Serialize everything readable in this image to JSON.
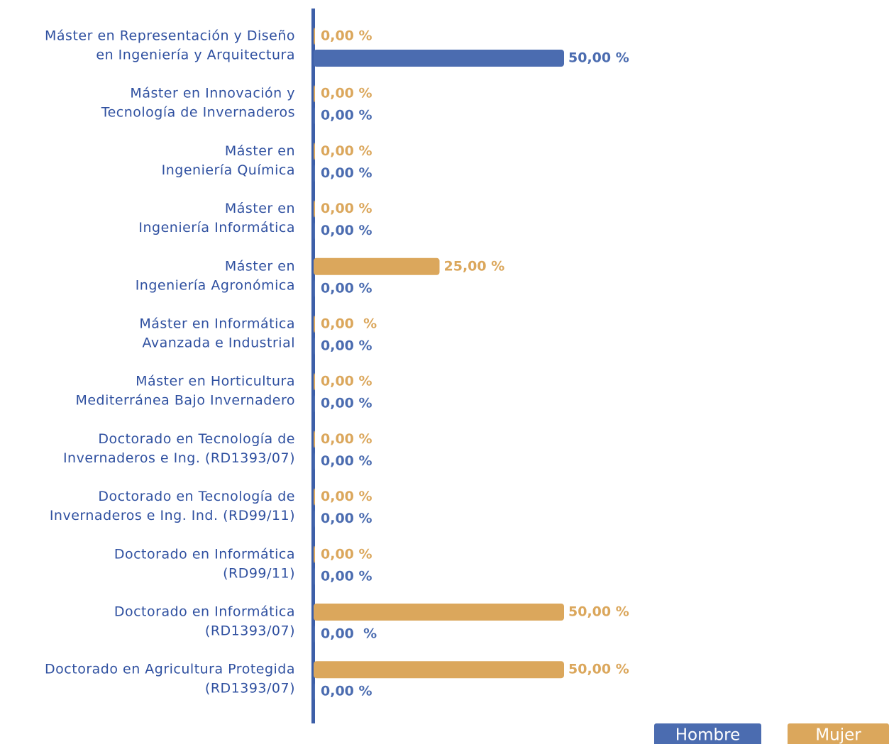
{
  "chart_data": {
    "type": "bar",
    "orientation": "horizontal",
    "categories": [
      [
        "Máster en Representación y Diseño",
        "en Ingeniería y Arquitectura"
      ],
      [
        "Máster en Innovación y",
        "Tecnología de Invernaderos"
      ],
      [
        "Máster en",
        "Ingeniería Química"
      ],
      [
        "Máster en",
        "Ingeniería Informática"
      ],
      [
        "Máster en",
        "Ingeniería Agronómica"
      ],
      [
        "Máster en Informática",
        "Avanzada e Industrial"
      ],
      [
        "Máster en Horticultura",
        "Mediterránea Bajo Invernadero"
      ],
      [
        "Doctorado en Tecnología de",
        "Invernaderos e Ing. (RD1393/07)"
      ],
      [
        "Doctorado en Tecnología de",
        "Invernaderos e Ing. Ind. (RD99/11)"
      ],
      [
        "Doctorado en Informática",
        "(RD99/11)"
      ],
      [
        "Doctorado en Informática",
        "(RD1393/07)"
      ],
      [
        "Doctorado en Agricultura Protegida",
        "(RD1393/07)"
      ]
    ],
    "series": [
      {
        "name": "Hombre",
        "color": "#4b6cb0",
        "values": [
          50,
          0,
          0,
          0,
          0,
          0,
          0,
          0,
          0,
          0,
          0,
          0
        ],
        "value_labels": [
          "50,00 %",
          "0,00 %",
          "0,00 %",
          "0,00 %",
          "0,00 %",
          "0,00 %",
          "0,00 %",
          "0,00 %",
          "0,00 %",
          "0,00 %",
          "0,00  %",
          "0,00 %"
        ]
      },
      {
        "name": "Mujer",
        "color": "#dba75c",
        "values": [
          0,
          0,
          0,
          0,
          25,
          0,
          0,
          0,
          0,
          0,
          50,
          50
        ],
        "value_labels": [
          "0,00 %",
          "0,00 %",
          "0,00 %",
          "0,00 %",
          "25,00 %",
          "0,00  %",
          "0,00 %",
          "0,00 %",
          "0,00 %",
          "0,00 %",
          "50,00 %",
          "50,00 %"
        ]
      }
    ],
    "xlim": [
      0,
      50
    ]
  }
}
